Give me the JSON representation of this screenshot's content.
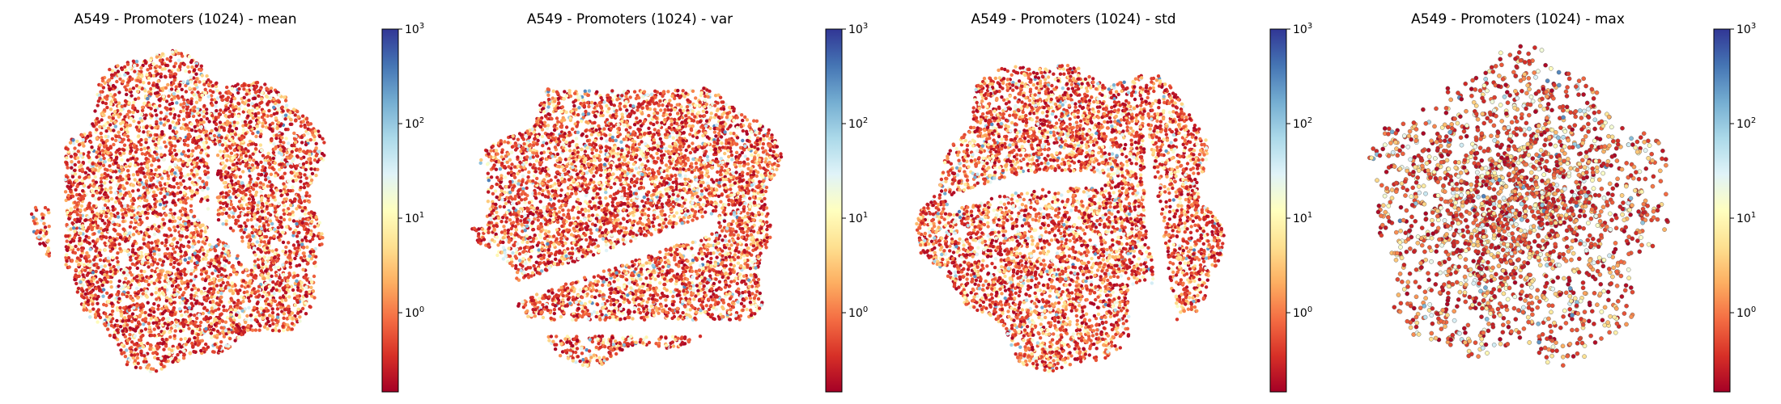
{
  "figure": {
    "colormap": [
      "#a50026",
      "#d73027",
      "#f46d43",
      "#fdae61",
      "#fee090",
      "#ffffbf",
      "#e0f3f8",
      "#abd9e9",
      "#74add1",
      "#4575b4",
      "#313695"
    ],
    "marker_outline_color": "#555555"
  },
  "chart_data": [
    {
      "type": "scatter",
      "title": "A549 - Promoters (1024) - mean",
      "xlabel": "",
      "ylabel": "",
      "axes_visible": false,
      "grid": false,
      "colorbar": {
        "scale": "log",
        "cmap": "RdYlBu",
        "range": [
          0.15,
          1000
        ],
        "ticks": [
          {
            "base": "10",
            "exp": "3",
            "value": 1000
          },
          {
            "base": "10",
            "exp": "2",
            "value": 100
          },
          {
            "base": "10",
            "exp": "1",
            "value": 10
          },
          {
            "base": "10",
            "exp": "0",
            "value": 1
          }
        ]
      },
      "point_count_estimate": 16000,
      "cloud_shape": "dense circular t-SNE embedding with two small detached fragments on the left",
      "dominant_values": "0.2–10 (red/orange/yellow), sparse points up to ~300 (light blue)"
    },
    {
      "type": "scatter",
      "title": "A549 - Promoters (1024) - var",
      "xlabel": "",
      "ylabel": "",
      "axes_visible": false,
      "grid": false,
      "colorbar": {
        "scale": "log",
        "cmap": "RdYlBu",
        "range": [
          0.15,
          1000
        ],
        "ticks": [
          {
            "base": "10",
            "exp": "3",
            "value": 1000
          },
          {
            "base": "10",
            "exp": "2",
            "value": 100
          },
          {
            "base": "10",
            "exp": "1",
            "value": 10
          },
          {
            "base": "10",
            "exp": "0",
            "value": 1
          }
        ]
      },
      "point_count_estimate": 16000,
      "cloud_shape": "circular embedding split into upper and lower lobes by horizontal gaps",
      "dominant_values": "0.2–10 (red/orange/yellow), sparse points up to ~300 (light blue)"
    },
    {
      "type": "scatter",
      "title": "A549 - Promoters (1024) - std",
      "xlabel": "",
      "ylabel": "",
      "axes_visible": false,
      "grid": false,
      "colorbar": {
        "scale": "log",
        "cmap": "RdYlBu",
        "range": [
          0.15,
          1000
        ],
        "ticks": [
          {
            "base": "10",
            "exp": "3",
            "value": 1000
          },
          {
            "base": "10",
            "exp": "2",
            "value": 100
          },
          {
            "base": "10",
            "exp": "1",
            "value": 10
          },
          {
            "base": "10",
            "exp": "0",
            "value": 1
          }
        ]
      },
      "point_count_estimate": 16000,
      "cloud_shape": "circular embedding with a curved gap and detached fragments on the right",
      "dominant_values": "0.2–10 (red/orange/yellow), sparse points up to ~300 (light blue)"
    },
    {
      "type": "scatter",
      "title": "A549 - Promoters (1024) - max",
      "xlabel": "",
      "ylabel": "",
      "axes_visible": false,
      "grid": false,
      "colorbar": {
        "scale": "log",
        "cmap": "RdYlBu",
        "range": [
          0.15,
          1000
        ],
        "ticks": [
          {
            "base": "10",
            "exp": "3",
            "value": 1000
          },
          {
            "base": "10",
            "exp": "2",
            "value": 100
          },
          {
            "base": "10",
            "exp": "1",
            "value": 10
          },
          {
            "base": "10",
            "exp": "0",
            "value": 1
          }
        ]
      },
      "point_count_estimate": 6000,
      "cloud_shape": "sparse circular embedding with a denser core",
      "dominant_values": "0.2–10 (red/orange/yellow), sparse points up to ~300 (light blue)"
    }
  ]
}
